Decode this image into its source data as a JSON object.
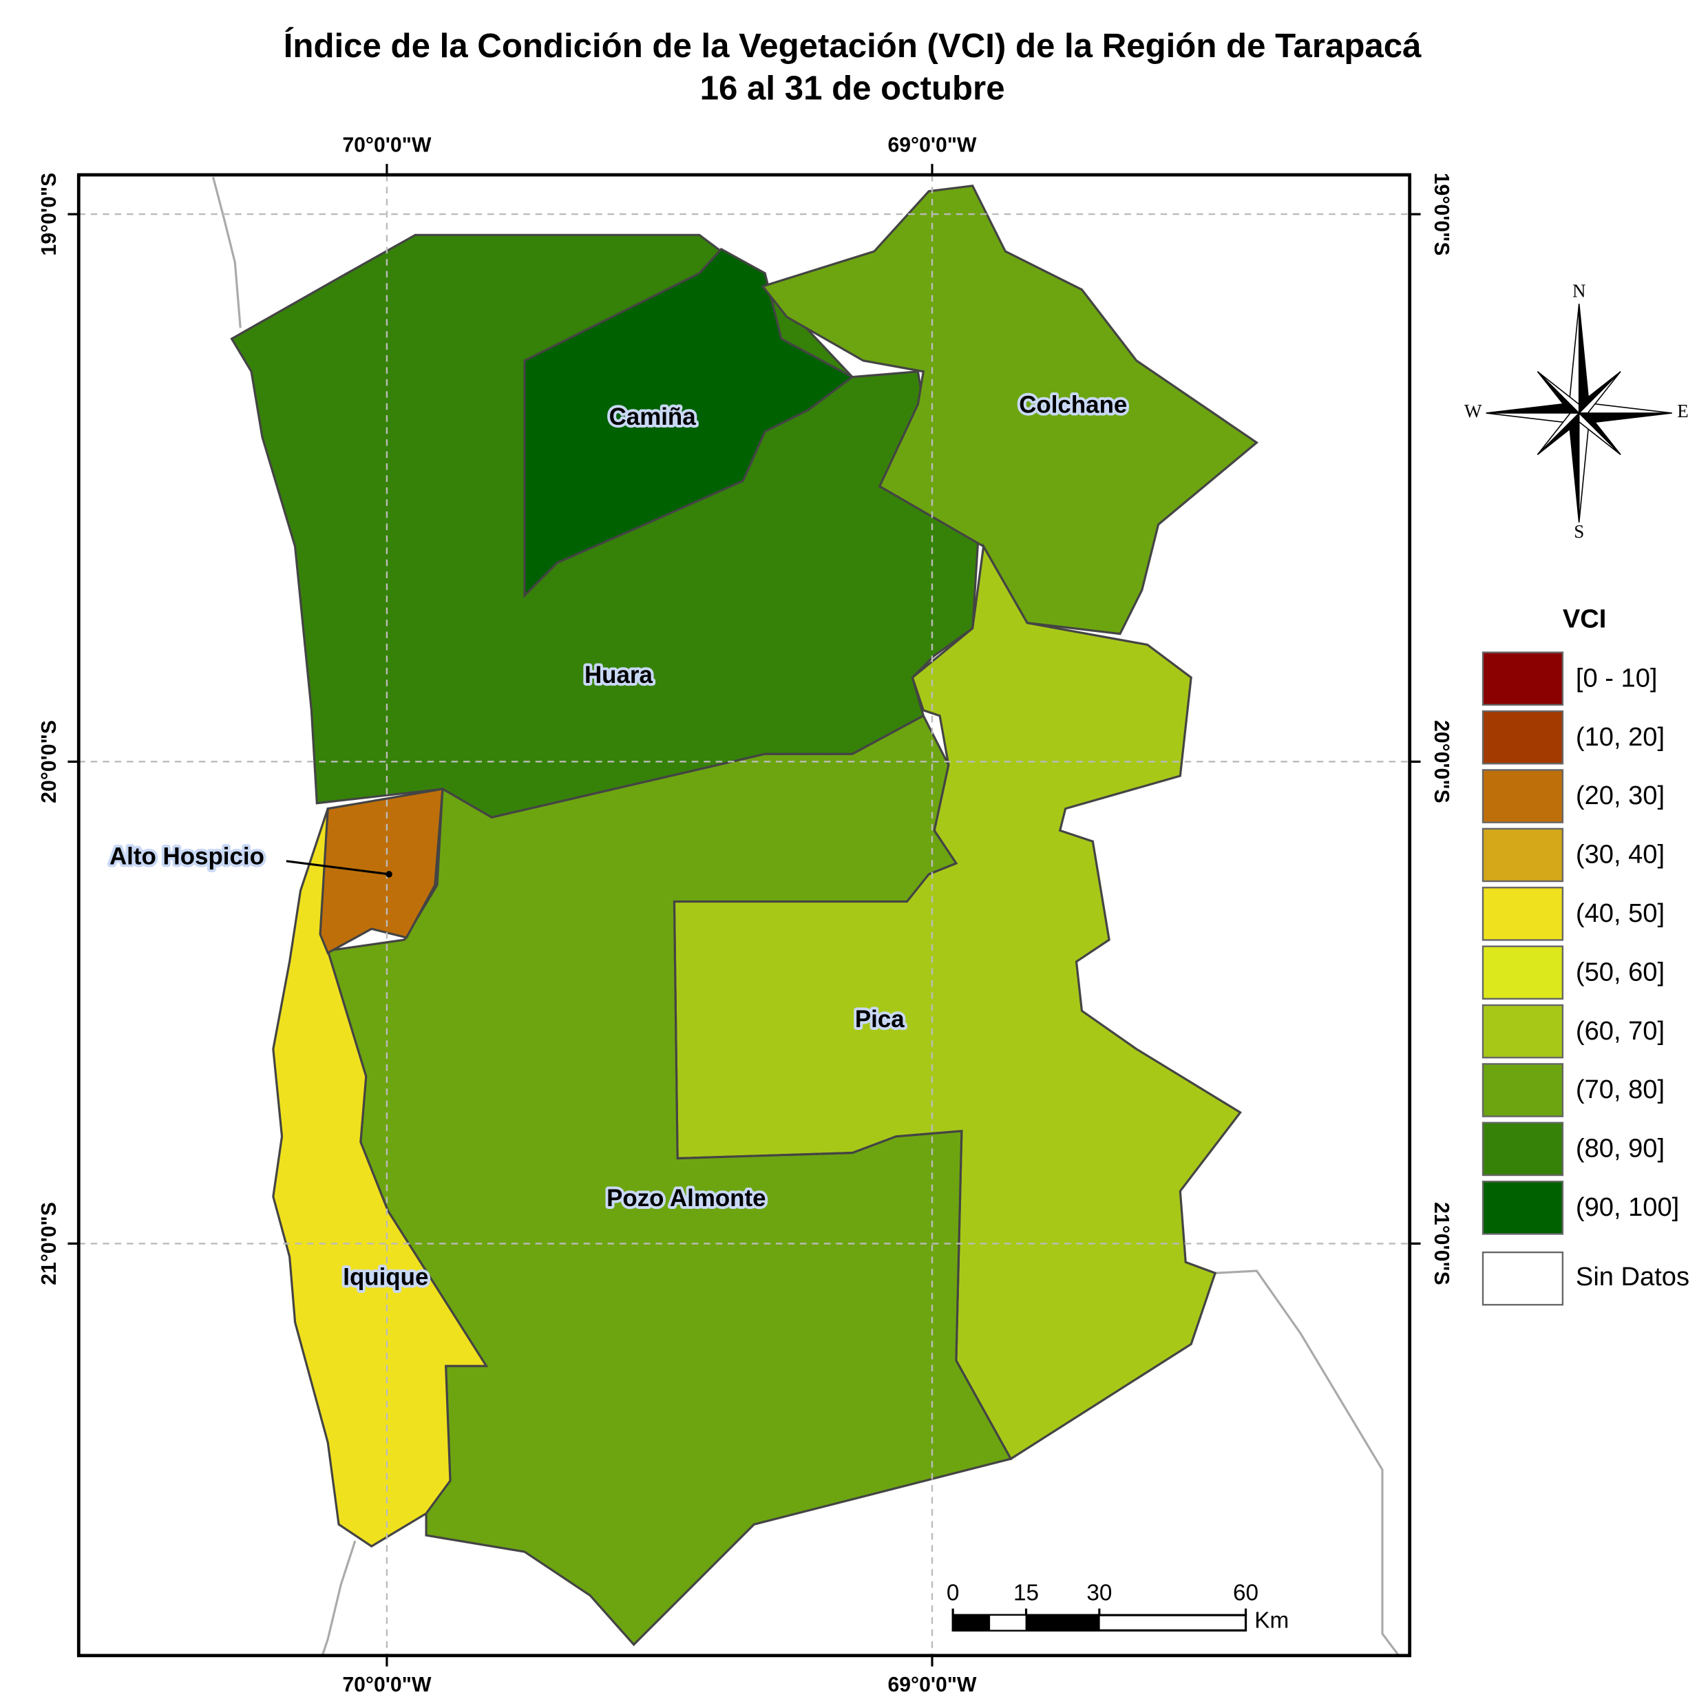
{
  "title": [
    "Índice de la Condición de la Vegetación (VCI) de la Región de Tarapacá",
    "16 al 31 de octubre"
  ],
  "graticule": {
    "longitudes": [
      "70°0'0\"W",
      "69°0'0\"W"
    ],
    "latitudes": [
      "19°0'0\"S",
      "20°0'0\"S",
      "21°0'0\"S"
    ]
  },
  "regions": [
    {
      "name": "Huara",
      "color": "#368208"
    },
    {
      "name": "Camiña",
      "color": "#006100"
    },
    {
      "name": "Colchane",
      "color": "#6da510"
    },
    {
      "name": "Pica",
      "color": "#a8c818"
    },
    {
      "name": "Pozo Almonte",
      "color": "#6da510"
    },
    {
      "name": "Iquique",
      "color": "#f0e11e"
    },
    {
      "name": "Alto Hospicio",
      "color": "#bf6f0a"
    }
  ],
  "legend": {
    "title": "VCI",
    "items": [
      {
        "label": "[0 - 10]",
        "color": "#8b0000"
      },
      {
        "label": "(10, 20]",
        "color": "#a33a00"
      },
      {
        "label": "(20, 30]",
        "color": "#bf6f0a"
      },
      {
        "label": "(30, 40]",
        "color": "#d4a818"
      },
      {
        "label": "(40, 50]",
        "color": "#f0e11e"
      },
      {
        "label": "(50, 60]",
        "color": "#dde81c"
      },
      {
        "label": "(60, 70]",
        "color": "#a8c818"
      },
      {
        "label": "(70, 80]",
        "color": "#6da510"
      },
      {
        "label": "(80, 90]",
        "color": "#368208"
      },
      {
        "label": "(90, 100]",
        "color": "#006100"
      }
    ],
    "no_data": "Sin Datos"
  },
  "scale_bar": {
    "ticks": [
      0,
      15,
      30,
      60
    ],
    "unit": "Km"
  },
  "compass": {
    "north": "N",
    "south": "S",
    "east": "E",
    "west": "W"
  }
}
